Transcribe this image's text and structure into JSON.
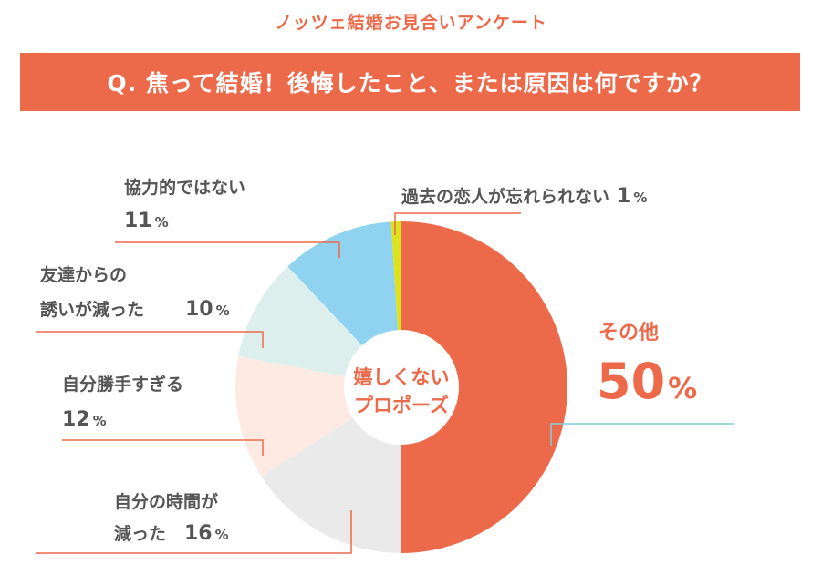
{
  "header": {
    "survey_title": "ノッツェ結婚お見合いアンケート",
    "question": "Q. 焦って結婚！後悔したこと、または原因は何ですか？"
  },
  "center_label": {
    "line1": "嬉しくない",
    "line2": "プロポーズ"
  },
  "colors": {
    "accent": "#ec6a4a",
    "leader_line": "#ec6a4a",
    "leader_line_main": "#7fcfd6"
  },
  "chart_data": {
    "type": "pie",
    "donut": true,
    "unit": "%",
    "slices": [
      {
        "label": "その他",
        "value": 50,
        "color": "#ec6a4a"
      },
      {
        "label": "自分の時間が減った",
        "value": 16,
        "color": "#eaeaea"
      },
      {
        "label": "自分勝手すぎる",
        "value": 12,
        "color": "#fdebe3"
      },
      {
        "label": "友達からの誘いが減った",
        "value": 10,
        "color": "#dcefed"
      },
      {
        "label": "協力的ではない",
        "value": 11,
        "color": "#8fd3f0"
      },
      {
        "label": "過去の恋人が忘れられない",
        "value": 1,
        "color": "#dde21e"
      }
    ]
  },
  "labels": [
    {
      "lines": [
        "その他"
      ],
      "value": "50"
    },
    {
      "lines": [
        "自分の時間が",
        "減った"
      ],
      "value": "16"
    },
    {
      "lines": [
        "自分勝手すぎる"
      ],
      "value": "12"
    },
    {
      "lines": [
        "友達からの",
        "誘いが減った"
      ],
      "value": "10"
    },
    {
      "lines": [
        "協力的ではない"
      ],
      "value": "11"
    },
    {
      "lines": [
        "過去の恋人が忘れられない"
      ],
      "value": "1"
    }
  ]
}
